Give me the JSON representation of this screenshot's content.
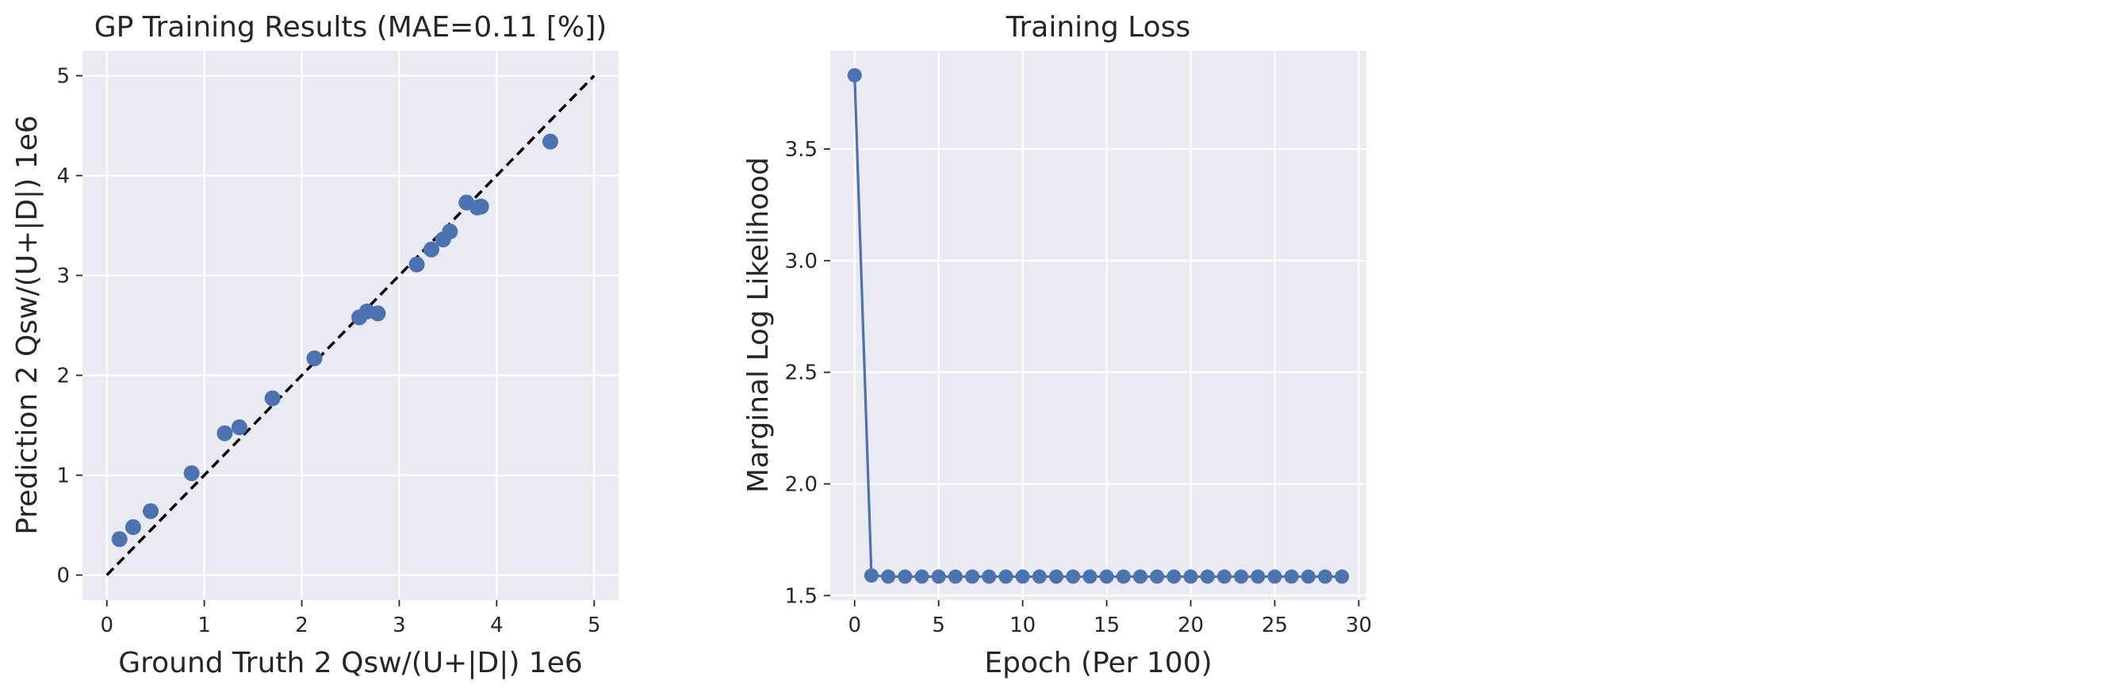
{
  "chart_data": [
    {
      "type": "scatter",
      "title": "GP Training Results (MAE=0.11 [%])",
      "xlabel": "Ground Truth 2 Qsw/(U+|D|) 1e6",
      "ylabel": "Prediction 2 Qsw/(U+|D|) 1e6",
      "xlim": [
        -0.25,
        5.25
      ],
      "ylim": [
        -0.25,
        5.25
      ],
      "xticks": [
        0,
        1,
        2,
        3,
        4,
        5
      ],
      "yticks": [
        0,
        1,
        2,
        3,
        4,
        5
      ],
      "grid": true,
      "reference_line": {
        "style": "dashed",
        "color": "#000000",
        "x": [
          0,
          5
        ],
        "y": [
          0,
          5
        ]
      },
      "point_color": "#4c72b0",
      "points": [
        {
          "x": 0.13,
          "y": 0.36
        },
        {
          "x": 0.27,
          "y": 0.48
        },
        {
          "x": 0.45,
          "y": 0.64
        },
        {
          "x": 0.87,
          "y": 1.02
        },
        {
          "x": 1.21,
          "y": 1.42
        },
        {
          "x": 1.36,
          "y": 1.48
        },
        {
          "x": 1.7,
          "y": 1.77
        },
        {
          "x": 2.13,
          "y": 2.17
        },
        {
          "x": 2.59,
          "y": 2.58
        },
        {
          "x": 2.67,
          "y": 2.64
        },
        {
          "x": 2.78,
          "y": 2.62
        },
        {
          "x": 3.18,
          "y": 3.11
        },
        {
          "x": 3.33,
          "y": 3.26
        },
        {
          "x": 3.45,
          "y": 3.36
        },
        {
          "x": 3.52,
          "y": 3.44
        },
        {
          "x": 3.69,
          "y": 3.73
        },
        {
          "x": 3.8,
          "y": 3.68
        },
        {
          "x": 3.84,
          "y": 3.69
        },
        {
          "x": 4.55,
          "y": 4.34
        }
      ]
    },
    {
      "type": "line",
      "title": "Training Loss",
      "xlabel": "Epoch (Per 100)",
      "ylabel": "Marginal Log Likelihood",
      "xlim": [
        -1.45,
        30.45
      ],
      "ylim": [
        1.48,
        3.94
      ],
      "xticks": [
        0,
        5,
        10,
        15,
        20,
        25,
        30
      ],
      "yticks": [
        1.5,
        2.0,
        2.5,
        3.0,
        3.5
      ],
      "ytick_labels": [
        "1.5",
        "2.0",
        "2.5",
        "3.0",
        "3.5"
      ],
      "grid": true,
      "line_color": "#4c72b0",
      "markers": true,
      "x": [
        0,
        1,
        2,
        3,
        4,
        5,
        6,
        7,
        8,
        9,
        10,
        11,
        12,
        13,
        14,
        15,
        16,
        17,
        18,
        19,
        20,
        21,
        22,
        23,
        24,
        25,
        26,
        27,
        28,
        29
      ],
      "y": [
        3.83,
        1.59,
        1.585,
        1.585,
        1.585,
        1.585,
        1.585,
        1.585,
        1.585,
        1.585,
        1.585,
        1.585,
        1.585,
        1.585,
        1.585,
        1.585,
        1.585,
        1.585,
        1.585,
        1.585,
        1.585,
        1.585,
        1.585,
        1.585,
        1.585,
        1.585,
        1.585,
        1.585,
        1.585,
        1.585
      ]
    }
  ]
}
